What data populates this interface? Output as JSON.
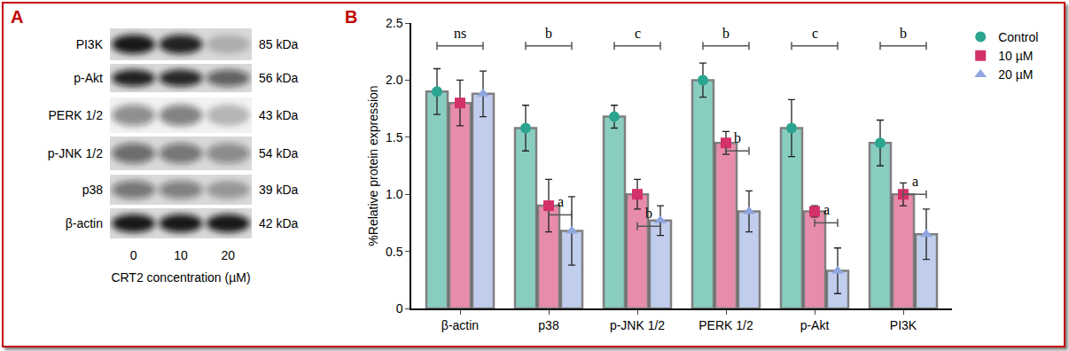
{
  "panel_a": {
    "label": "A",
    "lanes": [
      "0",
      "10",
      "20"
    ],
    "x_label": "CRT2 concentration (µM)",
    "rows": [
      {
        "protein": "PI3K",
        "size": "85 kDa",
        "intensity": [
          0.95,
          0.9,
          0.2
        ]
      },
      {
        "protein": "p-Akt",
        "size": "56 kDa",
        "intensity": [
          0.9,
          0.88,
          0.6
        ]
      },
      {
        "protein": "PERK 1/2",
        "size": "43 kDa",
        "intensity": [
          0.45,
          0.5,
          0.25
        ]
      },
      {
        "protein": "p-JNK 1/2",
        "size": "54 kDa",
        "intensity": [
          0.55,
          0.5,
          0.4
        ]
      },
      {
        "protein": "p38",
        "size": "39 kDa",
        "intensity": [
          0.5,
          0.45,
          0.3
        ]
      },
      {
        "protein": "β-actin",
        "size": "42 kDa",
        "intensity": [
          0.95,
          0.95,
          0.95
        ]
      }
    ]
  },
  "chart_data": {
    "type": "bar",
    "panel_label": "B",
    "y_label": "%Relative protein expression",
    "categories": [
      "β-actin",
      "p38",
      "p-JNK 1/2",
      "PERK 1/2",
      "p-Akt",
      "PI3K"
    ],
    "series": [
      {
        "name": "Control",
        "color": "#2aa58f",
        "marker": "circle",
        "values": [
          1.9,
          1.58,
          1.68,
          2.0,
          1.58,
          1.45
        ],
        "errors": [
          0.2,
          0.2,
          0.1,
          0.15,
          0.25,
          0.2
        ]
      },
      {
        "name": "10 µM",
        "color": "#d4306a",
        "marker": "square",
        "values": [
          1.8,
          0.9,
          1.0,
          1.45,
          0.85,
          1.0
        ],
        "errors": [
          0.2,
          0.23,
          0.13,
          0.1,
          0.05,
          0.1
        ]
      },
      {
        "name": "20 µM",
        "color": "#8fa6e0",
        "marker": "triangle-up",
        "values": [
          1.88,
          0.68,
          0.77,
          0.85,
          0.33,
          0.65
        ],
        "errors": [
          0.2,
          0.3,
          0.13,
          0.18,
          0.2,
          0.22
        ]
      }
    ],
    "significance": [
      {
        "category": "β-actin",
        "groups": [
          "Control",
          "20 µM"
        ],
        "label": "ns",
        "y": 2.3
      },
      {
        "category": "p38",
        "groups": [
          "Control",
          "20 µM"
        ],
        "label": "b",
        "y": 2.3
      },
      {
        "category": "p-JNK 1/2",
        "groups": [
          "Control",
          "20 µM"
        ],
        "label": "c",
        "y": 2.3
      },
      {
        "category": "PERK 1/2",
        "groups": [
          "Control",
          "20 µM"
        ],
        "label": "b",
        "y": 2.3
      },
      {
        "category": "p-Akt",
        "groups": [
          "Control",
          "20 µM"
        ],
        "label": "c",
        "y": 2.3
      },
      {
        "category": "PI3K",
        "groups": [
          "Control",
          "20 µM"
        ],
        "label": "b",
        "y": 2.3
      },
      {
        "category": "p38",
        "groups": [
          "10 µM",
          "20 µM"
        ],
        "label": "a",
        "y": 0.82
      },
      {
        "category": "p-JNK 1/2",
        "groups": [
          "10 µM",
          "20 µM"
        ],
        "label": "b",
        "y": 0.72
      },
      {
        "category": "PERK 1/2",
        "groups": [
          "10 µM",
          "20 µM"
        ],
        "label": "b",
        "y": 1.38
      },
      {
        "category": "p-Akt",
        "groups": [
          "10 µM",
          "20 µM"
        ],
        "label": "a",
        "y": 0.75
      },
      {
        "category": "PI3K",
        "groups": [
          "10 µM",
          "20 µM"
        ],
        "label": "a",
        "y": 1.0
      }
    ],
    "ylim": [
      0,
      2.5
    ],
    "yticks": [
      0,
      0.5,
      {
        "value": 1.0,
        "label": "1.0"
      },
      1.5,
      {
        "value": 2.0,
        "label": "2.0"
      },
      2.5
    ],
    "grid": false,
    "legend": "top right"
  }
}
